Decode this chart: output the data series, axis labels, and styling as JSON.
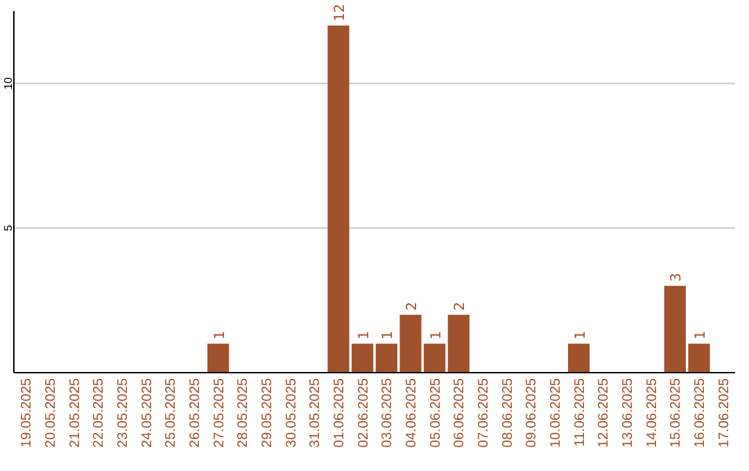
{
  "chart_data": {
    "type": "bar",
    "categories": [
      "19.05.2025",
      "20.05.2025",
      "21.05.2025",
      "22.05.2025",
      "23.05.2025",
      "24.05.2025",
      "25.05.2025",
      "26.05.2025",
      "27.05.2025",
      "28.05.2025",
      "29.05.2025",
      "30.05.2025",
      "31.05.2025",
      "01.06.2025",
      "02.06.2025",
      "03.06.2025",
      "04.06.2025",
      "05.06.2025",
      "06.06.2025",
      "07.06.2025",
      "08.06.2025",
      "09.06.2025",
      "10.06.2025",
      "11.06.2025",
      "12.06.2025",
      "13.06.2025",
      "14.06.2025",
      "15.06.2025",
      "16.06.2025",
      "17.06.2025"
    ],
    "values": [
      0,
      0,
      0,
      0,
      0,
      0,
      0,
      0,
      1,
      0,
      0,
      0,
      0,
      12,
      1,
      1,
      2,
      1,
      2,
      0,
      0,
      0,
      0,
      1,
      0,
      0,
      0,
      3,
      1,
      0
    ],
    "value_labels": [
      null,
      null,
      null,
      null,
      null,
      null,
      null,
      null,
      "1",
      null,
      null,
      null,
      null,
      "12",
      "1",
      "1",
      "2",
      "1",
      "2",
      null,
      null,
      null,
      null,
      "1",
      null,
      null,
      null,
      "3",
      "1",
      null
    ],
    "color": "#a0522d",
    "ylim": [
      0,
      12.5
    ],
    "yticks": [
      5,
      10
    ],
    "grid": "y"
  }
}
